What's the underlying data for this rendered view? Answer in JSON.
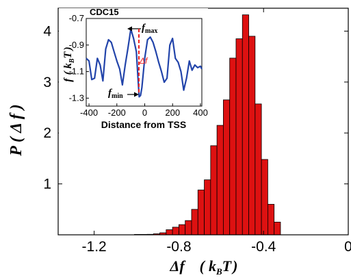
{
  "chart_data": [
    {
      "type": "bar",
      "xlabel": "Δf   (kBT)",
      "ylabel": "P ( Δ f )",
      "xlim": [
        -1.37,
        0.0
      ],
      "ylim": [
        0,
        4.45
      ],
      "x_ticks": [
        "-1.2",
        "-0.8",
        "-0.4",
        "0"
      ],
      "x_tick_values": [
        -1.2,
        -0.8,
        -0.4,
        0.0
      ],
      "y_ticks": [
        "1",
        "2",
        "3",
        "4"
      ],
      "y_tick_values": [
        1,
        2,
        3,
        4
      ],
      "bar_color": "#dd1111",
      "bin_width": 0.03,
      "bin_centers": [
        -0.995,
        -0.965,
        -0.935,
        -0.905,
        -0.875,
        -0.845,
        -0.815,
        -0.785,
        -0.755,
        -0.725,
        -0.695,
        -0.665,
        -0.635,
        -0.605,
        -0.575,
        -0.545,
        -0.515,
        -0.485,
        -0.455,
        -0.425,
        -0.395,
        -0.365,
        -0.335
      ],
      "values": [
        0.005,
        0.005,
        0.01,
        0.02,
        0.04,
        0.1,
        0.15,
        0.2,
        0.28,
        0.5,
        0.88,
        1.08,
        1.75,
        2.15,
        2.65,
        3.47,
        3.85,
        4.32,
        3.9,
        2.57,
        1.48,
        0.6,
        0.25
      ]
    },
    {
      "type": "line",
      "title": "CDC15",
      "xlabel": "Distance from TSS",
      "ylabel": "f  ( kBT )",
      "xlim": [
        -420,
        410
      ],
      "ylim": [
        -1.36,
        -0.7
      ],
      "x_ticks": [
        "-400",
        "-200",
        "0",
        "200",
        "400"
      ],
      "x_tick_values": [
        -400,
        -200,
        0,
        200,
        400
      ],
      "y_ticks": [
        "-0.7",
        "-0.9",
        "-1.1",
        "-1.3"
      ],
      "y_tick_values": [
        -0.7,
        -0.9,
        -1.1,
        -1.3
      ],
      "line_color": "#2244aa",
      "marker_color": "#ee2222",
      "annotations": {
        "fmax": "fmax",
        "fmin": "fmin",
        "delta_f": "Δf"
      },
      "x": [
        -420,
        -400,
        -380,
        -360,
        -340,
        -320,
        -300,
        -280,
        -260,
        -240,
        -220,
        -200,
        -180,
        -160,
        -140,
        -120,
        -100,
        -80,
        -60,
        -50,
        -40,
        -30,
        -20,
        0,
        20,
        40,
        60,
        80,
        100,
        120,
        140,
        160,
        180,
        200,
        220,
        240,
        260,
        280,
        300,
        320,
        340,
        360,
        380,
        400,
        410
      ],
      "y": [
        -1.0,
        -1.02,
        -1.16,
        -1.15,
        -1.0,
        -1.05,
        -1.17,
        -0.93,
        -0.86,
        -0.88,
        -0.95,
        -1.02,
        -1.08,
        -1.2,
        -1.05,
        -0.92,
        -0.78,
        -0.85,
        -0.95,
        -1.12,
        -1.29,
        -1.28,
        -1.22,
        -1.0,
        -0.86,
        -0.84,
        -0.88,
        -0.95,
        -1.03,
        -1.1,
        -1.18,
        -1.15,
        -0.9,
        -0.85,
        -1.0,
        -1.03,
        -1.1,
        -1.24,
        -1.15,
        -1.02,
        -1.09,
        -1.05,
        -1.07,
        -1.06,
        -1.08
      ]
    }
  ]
}
